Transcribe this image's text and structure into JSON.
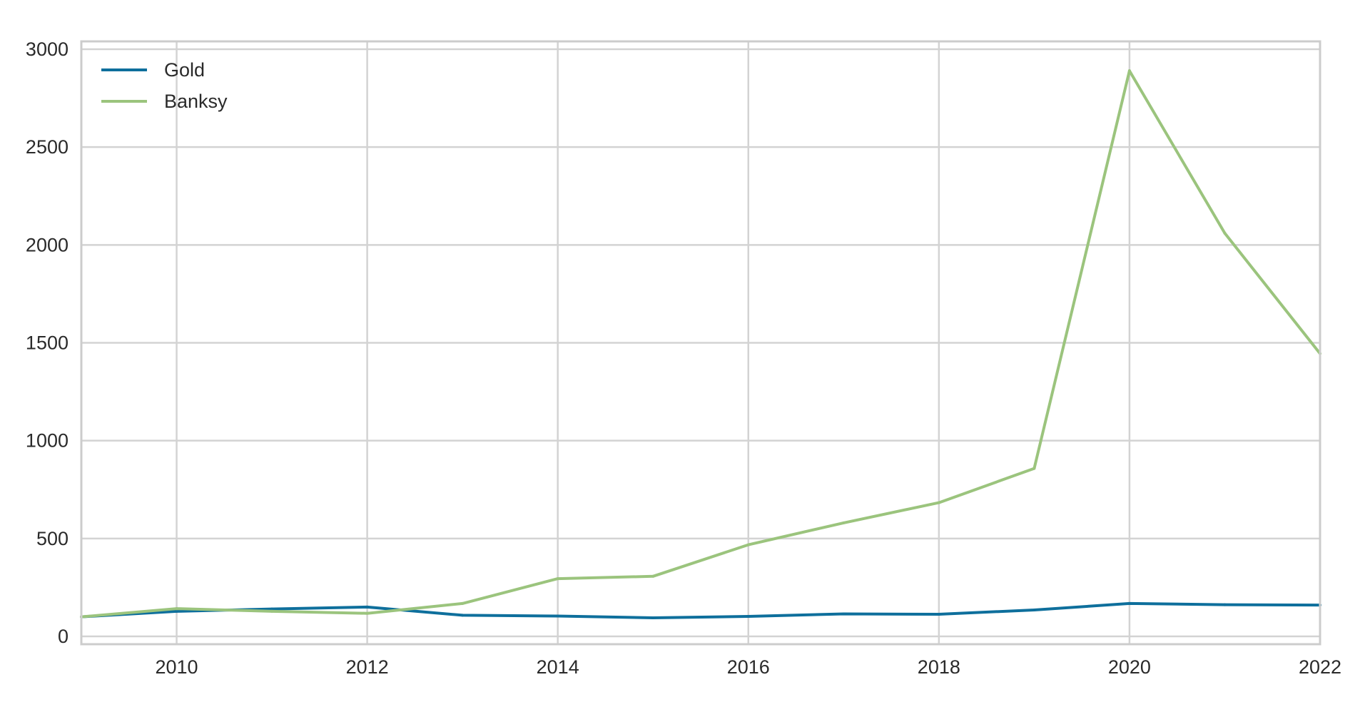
{
  "chart_data": {
    "type": "line",
    "title": "",
    "xlabel": "",
    "ylabel": "",
    "x": [
      2009,
      2010,
      2011,
      2012,
      2013,
      2014,
      2015,
      2016,
      2017,
      2018,
      2019,
      2020,
      2021,
      2022
    ],
    "xlim": [
      2009,
      2022
    ],
    "ylim": [
      -40,
      3040
    ],
    "x_ticks": [
      "2010",
      "2012",
      "2014",
      "2016",
      "2018",
      "2020",
      "2022"
    ],
    "y_ticks": [
      "0",
      "500",
      "1000",
      "1500",
      "2000",
      "2500",
      "3000"
    ],
    "grid": true,
    "legend_position": "top-left",
    "series": [
      {
        "name": "Gold",
        "color": "#0e6f9c",
        "values": [
          100,
          128,
          140,
          150,
          108,
          104,
          95,
          102,
          115,
          113,
          135,
          168,
          162,
          160
        ]
      },
      {
        "name": "Banksy",
        "color": "#9bc47d",
        "values": [
          100,
          142,
          128,
          118,
          168,
          295,
          307,
          468,
          580,
          683,
          858,
          2890,
          2060,
          1445
        ]
      }
    ]
  }
}
